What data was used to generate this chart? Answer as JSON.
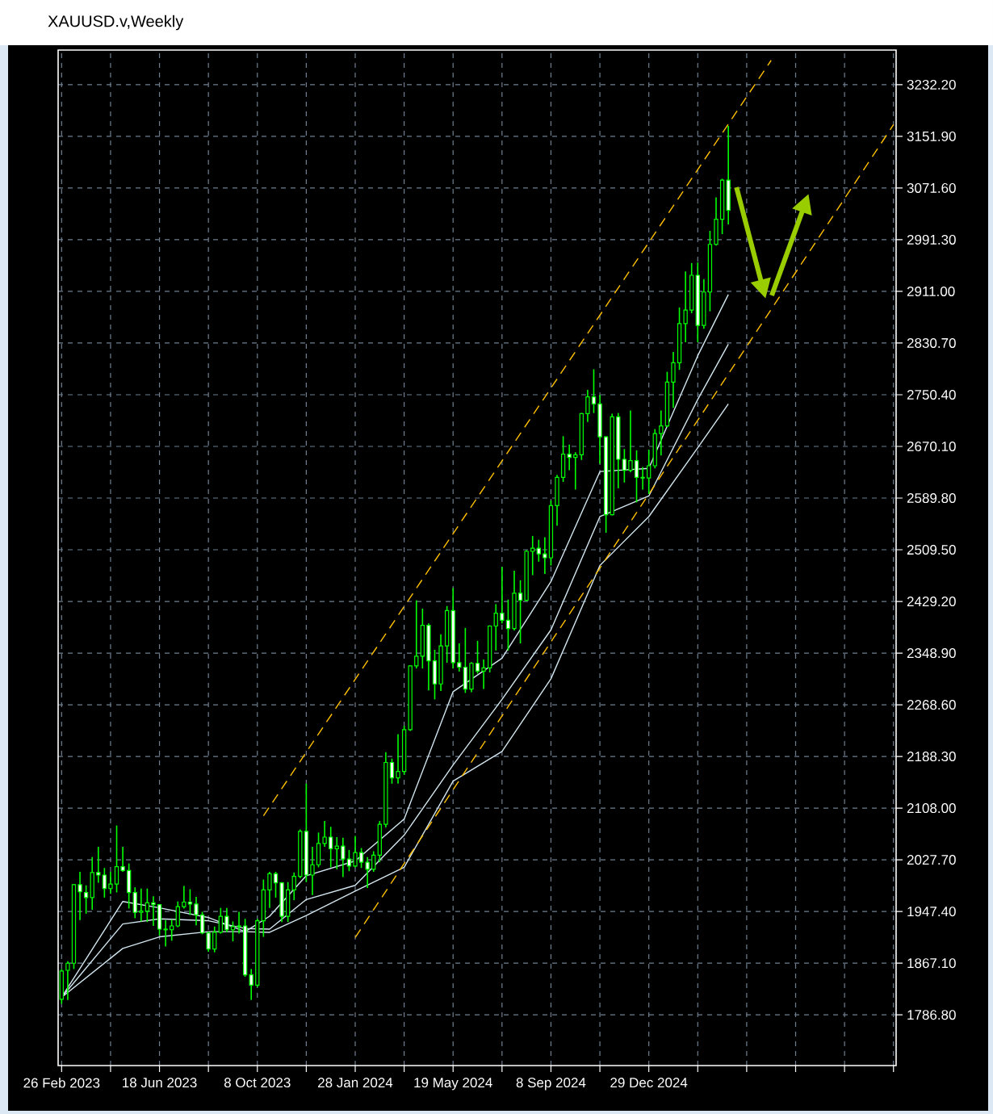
{
  "chart_data": {
    "type": "candlestick",
    "title": "XAUUSD.v,Weekly",
    "color": "#00ff00",
    "grid": true,
    "x": [
      "2023-02-26",
      "2023-03-05",
      "2023-03-12",
      "2023-03-19",
      "2023-03-26",
      "2023-04-02",
      "2023-04-09",
      "2023-04-16",
      "2023-04-23",
      "2023-04-30",
      "2023-05-07",
      "2023-05-14",
      "2023-05-21",
      "2023-05-28",
      "2023-06-04",
      "2023-06-11",
      "2023-06-18",
      "2023-06-25",
      "2023-07-02",
      "2023-07-09",
      "2023-07-16",
      "2023-07-23",
      "2023-07-30",
      "2023-08-06",
      "2023-08-13",
      "2023-08-20",
      "2023-08-27",
      "2023-09-03",
      "2023-09-10",
      "2023-09-17",
      "2023-09-24",
      "2023-10-01",
      "2023-10-08",
      "2023-10-15",
      "2023-10-22",
      "2023-10-29",
      "2023-11-05",
      "2023-11-12",
      "2023-11-19",
      "2023-11-26",
      "2023-12-03",
      "2023-12-10",
      "2023-12-17",
      "2023-12-24",
      "2023-12-31",
      "2024-01-07",
      "2024-01-14",
      "2024-01-21",
      "2024-01-28",
      "2024-02-04",
      "2024-02-11",
      "2024-02-18",
      "2024-02-25",
      "2024-03-03",
      "2024-03-10",
      "2024-03-17",
      "2024-03-24",
      "2024-03-31",
      "2024-04-07",
      "2024-04-14",
      "2024-04-21",
      "2024-04-28",
      "2024-05-05",
      "2024-05-12",
      "2024-05-19",
      "2024-05-26",
      "2024-06-02",
      "2024-06-09",
      "2024-06-16",
      "2024-06-23",
      "2024-06-30",
      "2024-07-07",
      "2024-07-14",
      "2024-07-21",
      "2024-07-28",
      "2024-08-04",
      "2024-08-11",
      "2024-08-18",
      "2024-08-25",
      "2024-09-01",
      "2024-09-08",
      "2024-09-15",
      "2024-09-22",
      "2024-09-29",
      "2024-10-06",
      "2024-10-13",
      "2024-10-20",
      "2024-10-27",
      "2024-11-03",
      "2024-11-10",
      "2024-11-17",
      "2024-11-24",
      "2024-12-01",
      "2024-12-08",
      "2024-12-15",
      "2024-12-22",
      "2024-12-29",
      "2025-01-05",
      "2025-01-12",
      "2025-01-19",
      "2025-01-26",
      "2025-02-02",
      "2025-02-09",
      "2025-02-16",
      "2025-02-23",
      "2025-03-02",
      "2025-03-09",
      "2025-03-16",
      "2025-03-23",
      "2025-03-30"
    ],
    "ohlc": [
      [
        1811,
        1858,
        1804,
        1855
      ],
      [
        1856,
        1870,
        1810,
        1867
      ],
      [
        1867,
        1990,
        1858,
        1989
      ],
      [
        1989,
        2009,
        1934,
        1978
      ],
      [
        1977,
        1988,
        1944,
        1969
      ],
      [
        1969,
        2032,
        1950,
        2008
      ],
      [
        2008,
        2048,
        1992,
        2004
      ],
      [
        2004,
        2015,
        1969,
        1983
      ],
      [
        1983,
        2009,
        1975,
        1990
      ],
      [
        1990,
        2081,
        1977,
        2017
      ],
      [
        2017,
        2048,
        2009,
        2011
      ],
      [
        2011,
        2022,
        1952,
        1977
      ],
      [
        1977,
        1985,
        1937,
        1946
      ],
      [
        1946,
        1983,
        1932,
        1948
      ],
      [
        1948,
        1983,
        1931,
        1961
      ],
      [
        1961,
        1971,
        1925,
        1958
      ],
      [
        1958,
        1959,
        1910,
        1920
      ],
      [
        1920,
        1934,
        1893,
        1919
      ],
      [
        1919,
        1935,
        1902,
        1925
      ],
      [
        1925,
        1963,
        1923,
        1955
      ],
      [
        1955,
        1987,
        1952,
        1962
      ],
      [
        1962,
        1982,
        1942,
        1959
      ],
      [
        1959,
        1970,
        1926,
        1942
      ],
      [
        1942,
        1947,
        1912,
        1914
      ],
      [
        1914,
        1916,
        1885,
        1889
      ],
      [
        1889,
        1924,
        1884,
        1915
      ],
      [
        1915,
        1953,
        1913,
        1940
      ],
      [
        1940,
        1953,
        1915,
        1919
      ],
      [
        1919,
        1932,
        1901,
        1924
      ],
      [
        1924,
        1947,
        1913,
        1925
      ],
      [
        1925,
        1936,
        1846,
        1849
      ],
      [
        1849,
        1858,
        1810,
        1833
      ],
      [
        1833,
        1936,
        1830,
        1933
      ],
      [
        1933,
        1997,
        1908,
        1981
      ],
      [
        1981,
        2009,
        1953,
        2006
      ],
      [
        2006,
        2009,
        1969,
        1992
      ],
      [
        1992,
        1993,
        1931,
        1940
      ],
      [
        1940,
        1993,
        1931,
        1981
      ],
      [
        1981,
        2008,
        1965,
        2002
      ],
      [
        2002,
        2075,
        1999,
        2072
      ],
      [
        2072,
        2146,
        1993,
        2004
      ],
      [
        2004,
        2048,
        1973,
        2020
      ],
      [
        2020,
        2070,
        2016,
        2053
      ],
      [
        2053,
        2088,
        2048,
        2063
      ],
      [
        2063,
        2079,
        2016,
        2045
      ],
      [
        2045,
        2063,
        2013,
        2049
      ],
      [
        2049,
        2062,
        2001,
        2029
      ],
      [
        2029,
        2043,
        2010,
        2018
      ],
      [
        2018,
        2065,
        2016,
        2039
      ],
      [
        2039,
        2046,
        2015,
        2024
      ],
      [
        2024,
        2032,
        1984,
        2013
      ],
      [
        2013,
        2041,
        2009,
        2035
      ],
      [
        2035,
        2088,
        2024,
        2083
      ],
      [
        2083,
        2195,
        2078,
        2179
      ],
      [
        2179,
        2185,
        2146,
        2155
      ],
      [
        2155,
        2223,
        2146,
        2165
      ],
      [
        2165,
        2236,
        2160,
        2230
      ],
      [
        2230,
        2330,
        2228,
        2329
      ],
      [
        2329,
        2431,
        2325,
        2344
      ],
      [
        2344,
        2418,
        2325,
        2392
      ],
      [
        2392,
        2395,
        2291,
        2337
      ],
      [
        2337,
        2354,
        2277,
        2301
      ],
      [
        2301,
        2378,
        2290,
        2360
      ],
      [
        2360,
        2422,
        2334,
        2415
      ],
      [
        2415,
        2450,
        2325,
        2334
      ],
      [
        2334,
        2364,
        2320,
        2327
      ],
      [
        2327,
        2388,
        2287,
        2293
      ],
      [
        2293,
        2335,
        2288,
        2333
      ],
      [
        2333,
        2368,
        2317,
        2321
      ],
      [
        2321,
        2339,
        2293,
        2326
      ],
      [
        2326,
        2392,
        2319,
        2391
      ],
      [
        2391,
        2425,
        2353,
        2411
      ],
      [
        2411,
        2483,
        2395,
        2400
      ],
      [
        2400,
        2432,
        2353,
        2387
      ],
      [
        2387,
        2477,
        2384,
        2442
      ],
      [
        2442,
        2462,
        2364,
        2431
      ],
      [
        2431,
        2509,
        2430,
        2507
      ],
      [
        2507,
        2531,
        2470,
        2512
      ],
      [
        2512,
        2525,
        2491,
        2503
      ],
      [
        2503,
        2529,
        2472,
        2497
      ],
      [
        2497,
        2586,
        2485,
        2578
      ],
      [
        2578,
        2626,
        2547,
        2622
      ],
      [
        2622,
        2686,
        2615,
        2658
      ],
      [
        2658,
        2673,
        2633,
        2653
      ],
      [
        2653,
        2661,
        2603,
        2657
      ],
      [
        2657,
        2722,
        2649,
        2721
      ],
      [
        2721,
        2758,
        2708,
        2747
      ],
      [
        2747,
        2790,
        2722,
        2736
      ],
      [
        2736,
        2750,
        2643,
        2685
      ],
      [
        2685,
        2686,
        2536,
        2564
      ],
      [
        2564,
        2721,
        2563,
        2716
      ],
      [
        2716,
        2722,
        2605,
        2650
      ],
      [
        2650,
        2666,
        2614,
        2633
      ],
      [
        2633,
        2726,
        2630,
        2648
      ],
      [
        2648,
        2664,
        2583,
        2622
      ],
      [
        2622,
        2638,
        2603,
        2621
      ],
      [
        2621,
        2665,
        2596,
        2640
      ],
      [
        2640,
        2697,
        2636,
        2690
      ],
      [
        2690,
        2726,
        2656,
        2702
      ],
      [
        2702,
        2786,
        2700,
        2770
      ],
      [
        2770,
        2817,
        2730,
        2800
      ],
      [
        2800,
        2886,
        2789,
        2861
      ],
      [
        2861,
        2942,
        2832,
        2882
      ],
      [
        2882,
        2955,
        2877,
        2936
      ],
      [
        2936,
        2956,
        2832,
        2858
      ],
      [
        2858,
        2930,
        2853,
        2910
      ],
      [
        2910,
        3005,
        2880,
        2984
      ],
      [
        2984,
        3057,
        2982,
        3023
      ],
      [
        3023,
        3086,
        3000,
        3084
      ],
      [
        3084,
        3168,
        3015,
        3037
      ]
    ],
    "series": [
      {
        "type": "line",
        "color": "#d2e6f0",
        "x": [
          "2023-02-26",
          "2023-05-07",
          "2023-06-18",
          "2023-08-13",
          "2023-09-24",
          "2023-10-22",
          "2023-12-03",
          "2024-01-28",
          "2024-03-24",
          "2024-05-19",
          "2024-07-14",
          "2024-09-08",
          "2024-11-03",
          "2024-12-29",
          "2025-02-23",
          "2025-03-30"
        ],
        "values": [
          1814,
          1963,
          1953,
          1938,
          1916,
          1940,
          2003,
          2026,
          2091,
          2289,
          2341,
          2460,
          2631,
          2636,
          2811,
          2906
        ]
      },
      {
        "type": "line",
        "color": "#d2e6f0",
        "x": [
          "2023-02-26",
          "2023-05-07",
          "2023-06-18",
          "2023-08-13",
          "2023-09-24",
          "2023-10-22",
          "2023-12-03",
          "2024-01-28",
          "2024-03-24",
          "2024-05-19",
          "2024-07-14",
          "2024-09-08",
          "2024-11-03",
          "2024-12-29",
          "2025-02-23",
          "2025-03-30"
        ],
        "values": [
          1814,
          1928,
          1936,
          1933,
          1921,
          1920,
          1966,
          1988,
          2066,
          2175,
          2277,
          2385,
          2561,
          2593,
          2743,
          2829
        ]
      },
      {
        "type": "line",
        "color": "#d2e6f0",
        "x": [
          "2023-02-26",
          "2023-05-07",
          "2023-06-18",
          "2023-08-13",
          "2023-09-24",
          "2023-10-22",
          "2023-12-03",
          "2024-01-28",
          "2024-03-24",
          "2024-05-19",
          "2024-07-14",
          "2024-09-08",
          "2024-11-03",
          "2024-12-29",
          "2025-02-23",
          "2025-03-30"
        ],
        "values": [
          1814,
          1890,
          1908,
          1916,
          1916,
          1915,
          1941,
          1979,
          2016,
          2150,
          2196,
          2309,
          2485,
          2561,
          2668,
          2736
        ]
      },
      {
        "type": "line",
        "color": "#ffc000",
        "line_style": "dashed",
        "x": [
          "2023-10-15",
          "2025-05-18"
        ],
        "values": [
          2096,
          3270
        ]
      },
      {
        "type": "line",
        "color": "#ffc000",
        "line_style": "dashed",
        "x": [
          "2024-01-28",
          "2025-10-05"
        ],
        "values": [
          1907,
          3170
        ]
      }
    ],
    "xlim": [
      "2023-02-22",
      "2025-10-08"
    ],
    "ylim": [
      1708,
      3286
    ],
    "xticks": [
      {
        "value": "2023-02-26",
        "label": "26 Feb 2023"
      },
      {
        "value": "2023-04-23",
        "label": null
      },
      {
        "value": "2023-06-18",
        "label": "18 Jun 2023"
      },
      {
        "value": "2023-08-13",
        "label": null
      },
      {
        "value": "2023-10-08",
        "label": "8 Oct 2023"
      },
      {
        "value": "2023-12-03",
        "label": null
      },
      {
        "value": "2024-01-28",
        "label": "28 Jan 2024"
      },
      {
        "value": "2024-03-24",
        "label": null
      },
      {
        "value": "2024-05-19",
        "label": "19 May 2024"
      },
      {
        "value": "2024-07-14",
        "label": null
      },
      {
        "value": "2024-09-08",
        "label": "8 Sep 2024"
      },
      {
        "value": "2024-11-03",
        "label": null
      },
      {
        "value": "2024-12-29",
        "label": "29 Dec 2024"
      },
      {
        "value": "2025-02-23",
        "label": null
      },
      {
        "value": "2025-04-20",
        "label": null
      },
      {
        "value": "2025-06-15",
        "label": null
      },
      {
        "value": "2025-08-10",
        "label": null
      },
      {
        "value": "2025-10-05",
        "label": null
      }
    ],
    "yticks": [
      {
        "value": 1786.8,
        "label": "1786.80"
      },
      {
        "value": 1867.1,
        "label": "1867.10"
      },
      {
        "value": 1947.4,
        "label": "1947.40"
      },
      {
        "value": 2027.7,
        "label": "2027.70"
      },
      {
        "value": 2108.0,
        "label": "2108.00"
      },
      {
        "value": 2188.3,
        "label": "2188.30"
      },
      {
        "value": 2268.6,
        "label": "2268.60"
      },
      {
        "value": 2348.9,
        "label": "2348.90"
      },
      {
        "value": 2429.2,
        "label": "2429.20"
      },
      {
        "value": 2509.5,
        "label": "2509.50"
      },
      {
        "value": 2589.8,
        "label": "2589.80"
      },
      {
        "value": 2670.1,
        "label": "2670.10"
      },
      {
        "value": 2750.4,
        "label": "2750.40"
      },
      {
        "value": 2830.7,
        "label": "2830.70"
      },
      {
        "value": 2911.0,
        "label": "2911.00"
      },
      {
        "value": 2991.3,
        "label": "2991.30"
      },
      {
        "value": 3071.6,
        "label": "3071.60"
      },
      {
        "value": 3151.9,
        "label": "3151.90"
      },
      {
        "value": 3232.2,
        "label": "3232.20"
      }
    ]
  }
}
